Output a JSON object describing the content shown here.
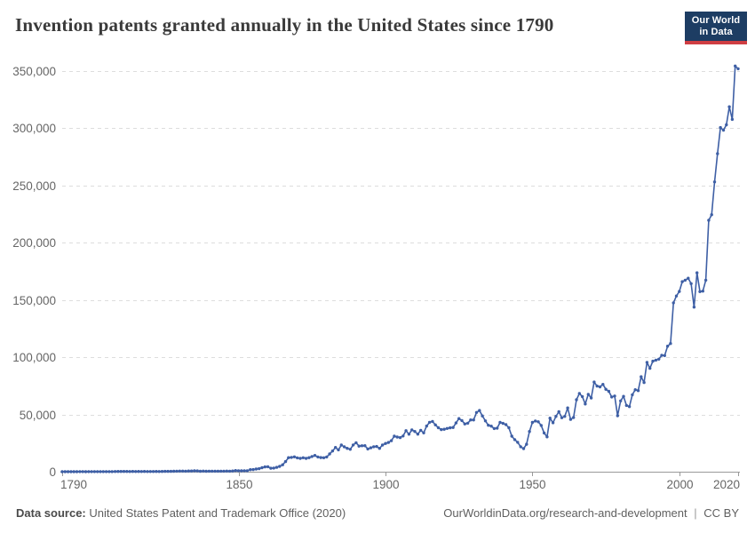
{
  "header": {
    "title": "Invention patents granted annually in the United States since 1790",
    "logo": {
      "line1": "Our World",
      "line2": "in Data"
    }
  },
  "footer": {
    "source_label": "Data source:",
    "source_text": "United States Patent and Trademark Office (2020)",
    "link": "OurWorldinData.org/research-and-development",
    "separator": "|",
    "license": "CC BY"
  },
  "colors": {
    "line": "#3e5fa5",
    "grid": "#dddddd",
    "axis": "#999999",
    "tick_text": "#666666",
    "title_text": "#3a3a3a",
    "logo_bg": "#1d3d63",
    "logo_red": "#cf3e43"
  },
  "chart_data": {
    "type": "line",
    "title": "Invention patents granted annually in the United States since 1790",
    "xlabel": "",
    "ylabel": "",
    "xlim": [
      1790,
      2020
    ],
    "ylim": [
      0,
      350000
    ],
    "grid": "dashed-horizontal",
    "legend": "none",
    "markers": true,
    "x_ticks": [
      {
        "value": 1790,
        "label": "1790",
        "align": "start"
      },
      {
        "value": 1850,
        "label": "1850",
        "align": "middle"
      },
      {
        "value": 1900,
        "label": "1900",
        "align": "middle"
      },
      {
        "value": 1950,
        "label": "1950",
        "align": "middle"
      },
      {
        "value": 2000,
        "label": "2000",
        "align": "middle"
      },
      {
        "value": 2020,
        "label": "2020",
        "align": "end"
      }
    ],
    "y_ticks": [
      {
        "value": 0,
        "label": "0"
      },
      {
        "value": 50000,
        "label": "50,000"
      },
      {
        "value": 100000,
        "label": "100,000"
      },
      {
        "value": 150000,
        "label": "150,000"
      },
      {
        "value": 200000,
        "label": "200,000"
      },
      {
        "value": 250000,
        "label": "250,000"
      },
      {
        "value": 300000,
        "label": "300,000"
      },
      {
        "value": 350000,
        "label": "350,000"
      }
    ],
    "series": [
      {
        "name": "United States",
        "start_year": 1790,
        "end_year": 2020,
        "values": [
          3,
          33,
          11,
          20,
          22,
          12,
          44,
          51,
          28,
          44,
          41,
          44,
          65,
          97,
          84,
          57,
          63,
          99,
          158,
          203,
          223,
          215,
          238,
          181,
          210,
          173,
          206,
          174,
          222,
          156,
          155,
          168,
          200,
          173,
          228,
          304,
          323,
          331,
          368,
          447,
          544,
          573,
          474,
          586,
          630,
          752,
          702,
          426,
          514,
          404,
          458,
          490,
          488,
          493,
          478,
          473,
          566,
          495,
          583,
          984,
          883,
          752,
          885,
          844,
          1755,
          1881,
          2302,
          2674,
          3455,
          4160,
          4357,
          3020,
          3214,
          3773,
          4630,
          6088,
          8863,
          12277,
          12526,
          12931,
          12137,
          11659,
          12180,
          11616,
          12230,
          13291,
          14169,
          12920,
          12345,
          12165,
          12902,
          15500,
          18091,
          21162,
          19118,
          23285,
          21767,
          20403,
          19551,
          23324,
          25313,
          22312,
          22647,
          22750,
          19855,
          20856,
          21822,
          22067,
          20377,
          23278,
          24644,
          25546,
          27119,
          31029,
          30258,
          29775,
          31170,
          35859,
          32735,
          36561,
          35141,
          32856,
          36198,
          33917,
          39892,
          43118,
          43892,
          40935,
          38452,
          36797,
          37060,
          37798,
          38369,
          38616,
          42574,
          46432,
          44733,
          41717,
          42357,
          45267,
          45226,
          51756,
          53458,
          48774,
          44420,
          40618,
          39782,
          37683,
          38061,
          43073,
          42238,
          41109,
          38449,
          31054,
          28053,
          25695,
          21803,
          20139,
          23963,
          35131,
          43040,
          44326,
          43616,
          40468,
          33809,
          30432,
          46817,
          42744,
          48330,
          52408,
          47170,
          48368,
          55691,
          45679,
          47378,
          62857,
          68406,
          65652,
          59104,
          67559,
          64429,
          78316,
          74811,
          74143,
          76278,
          71994,
          70226,
          65269,
          66102,
          48854,
          61819,
          65771,
          57888,
          56860,
          67200,
          71661,
          70860,
          82952,
          77924,
          95537,
          90365,
          96511,
          97444,
          98342,
          101676,
          101419,
          109645,
          111984,
          147517,
          153486,
          157494,
          166035,
          167331,
          169023,
          164291,
          143806,
          173772,
          157282,
          157772,
          167349,
          219614,
          224505,
          253155,
          277835,
          300678,
          298407,
          303049,
          318829,
          307759,
          354430,
          351993
        ]
      }
    ]
  }
}
